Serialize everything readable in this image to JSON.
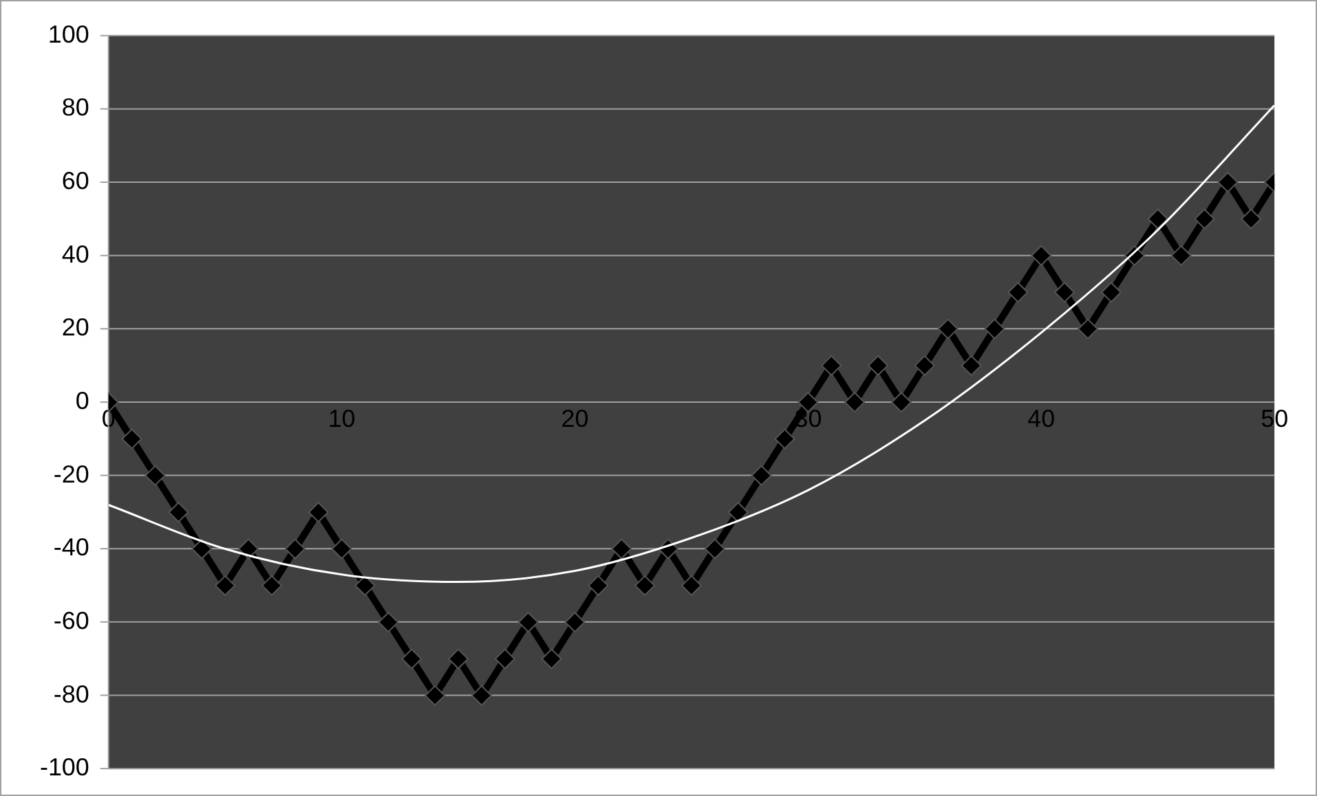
{
  "chart_data": {
    "type": "line",
    "xlim": [
      0,
      50
    ],
    "xticks": [
      0,
      10,
      20,
      30,
      40,
      50
    ],
    "ylim": [
      -100,
      100
    ],
    "yticks": [
      -100,
      -80,
      -60,
      -40,
      -20,
      0,
      20,
      40,
      60,
      80,
      100
    ],
    "grid": "y",
    "legend": false,
    "x": [
      0,
      1,
      2,
      3,
      4,
      5,
      6,
      7,
      8,
      9,
      10,
      11,
      12,
      13,
      14,
      15,
      16,
      17,
      18,
      19,
      20,
      21,
      22,
      23,
      24,
      25,
      26,
      27,
      28,
      29,
      30,
      31,
      32,
      33,
      34,
      35,
      36,
      37,
      38,
      39,
      40,
      41,
      42,
      43,
      44,
      45,
      46,
      47,
      48,
      49,
      50
    ],
    "series": [
      {
        "color": "#000000",
        "marker": "diamond",
        "values": [
          0,
          -10,
          -20,
          -30,
          -40,
          -50,
          -40,
          -50,
          -40,
          -30,
          -40,
          -50,
          -60,
          -70,
          -80,
          -70,
          -80,
          -70,
          -60,
          -70,
          -60,
          -50,
          -40,
          -50,
          -40,
          -50,
          -40,
          -30,
          -20,
          -10,
          0,
          10,
          0,
          10,
          0,
          10,
          20,
          10,
          20,
          30,
          40,
          30,
          20,
          30,
          40,
          50,
          40,
          50,
          60,
          50,
          60
        ]
      },
      {
        "type": "line",
        "color": "#ffffff",
        "marker": "none",
        "x": [
          0,
          5,
          10,
          15,
          20,
          25,
          30,
          35,
          40,
          45,
          50
        ],
        "values": [
          -28,
          -40,
          -47,
          -49,
          -46,
          -37,
          -24,
          -5,
          19,
          47,
          81
        ]
      }
    ]
  }
}
